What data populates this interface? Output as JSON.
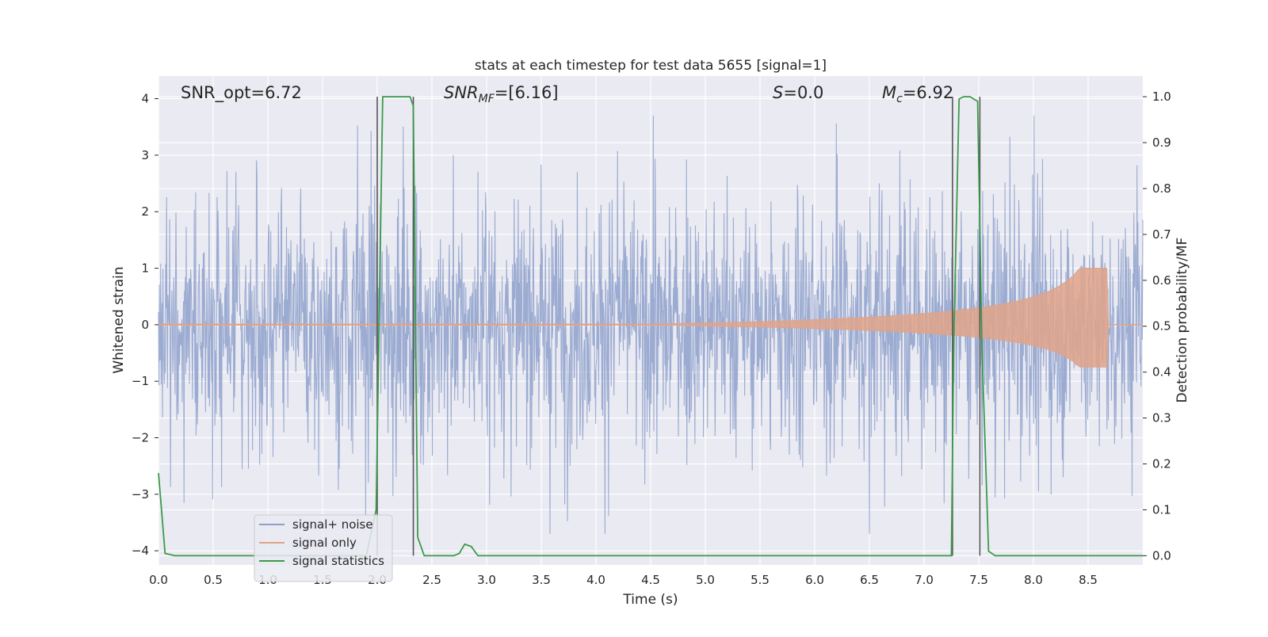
{
  "chart_data": {
    "type": "line",
    "title": "stats at each timestep for test data 5655 [signal=1]",
    "xlabel": "Time (s)",
    "ylabel_left": "Whitened strain",
    "ylabel_right": "Detection probability/MF",
    "xlim": [
      0.0,
      9.0
    ],
    "ylim_left": [
      -4.25,
      4.4
    ],
    "ylim_right": [
      -0.02,
      1.045
    ],
    "x_ticks": [
      "0.0",
      "0.5",
      "1.0",
      "1.5",
      "2.0",
      "2.5",
      "3.0",
      "3.5",
      "4.0",
      "4.5",
      "5.0",
      "5.5",
      "6.0",
      "6.5",
      "7.0",
      "7.5",
      "8.0",
      "8.5"
    ],
    "y_ticks_left": [
      "4",
      "3",
      "2",
      "1",
      "0",
      "−1",
      "−2",
      "−3",
      "−4"
    ],
    "y_ticks_right": [
      "1.0",
      "0.9",
      "0.8",
      "0.7",
      "0.6",
      "0.5",
      "0.4",
      "0.3",
      "0.2",
      "0.1",
      "0.0"
    ],
    "grid": true,
    "legend_position": "lower-left",
    "annotations": {
      "snr_opt": "SNR_opt=6.72",
      "snr_mf_base": "SNR",
      "snr_mf_sub": "MF",
      "snr_mf_value": "=[6.16]",
      "s_base": "S",
      "s_value": "=0.0",
      "mc_base": "M",
      "mc_sub": "c",
      "mc_value": "=6.92"
    },
    "series": [
      {
        "name": "signal+ noise",
        "color": "#8da0cb",
        "axis": "left",
        "description_level": "noise envelope approx ±1.7, peaks to ±3.5"
      },
      {
        "name": "signal only",
        "color": "#e0a389",
        "axis": "left",
        "chirp": {
          "start_time": 4.5,
          "merger_time": 8.68,
          "peak_amplitude": 1.0
        }
      },
      {
        "name": "signal statistics",
        "color": "#3a9b4a",
        "axis": "right",
        "x": [
          0.0,
          0.06,
          0.15,
          1.9,
          1.99,
          2.05,
          2.08,
          2.3,
          2.33,
          2.37,
          2.43,
          2.7,
          2.75,
          2.8,
          2.86,
          2.92,
          2.95,
          7.25,
          7.27,
          7.32,
          7.36,
          7.42,
          7.49,
          7.53,
          7.59,
          7.65,
          9.0
        ],
        "y": [
          0.18,
          0.005,
          0.0,
          0.0,
          0.1,
          1.0,
          1.0,
          1.0,
          0.98,
          0.04,
          0.0,
          0.0,
          0.005,
          0.025,
          0.02,
          0.0,
          0.0,
          0.0,
          0.45,
          0.995,
          1.0,
          1.0,
          0.99,
          0.45,
          0.01,
          0.0,
          0.0
        ]
      }
    ],
    "vertical_markers_x": [
      2.0,
      2.33,
      7.26,
      7.51
    ],
    "colors": {
      "plot_background": "#eaeaf2",
      "grid": "#ffffff",
      "marker_line": "#555555"
    }
  }
}
